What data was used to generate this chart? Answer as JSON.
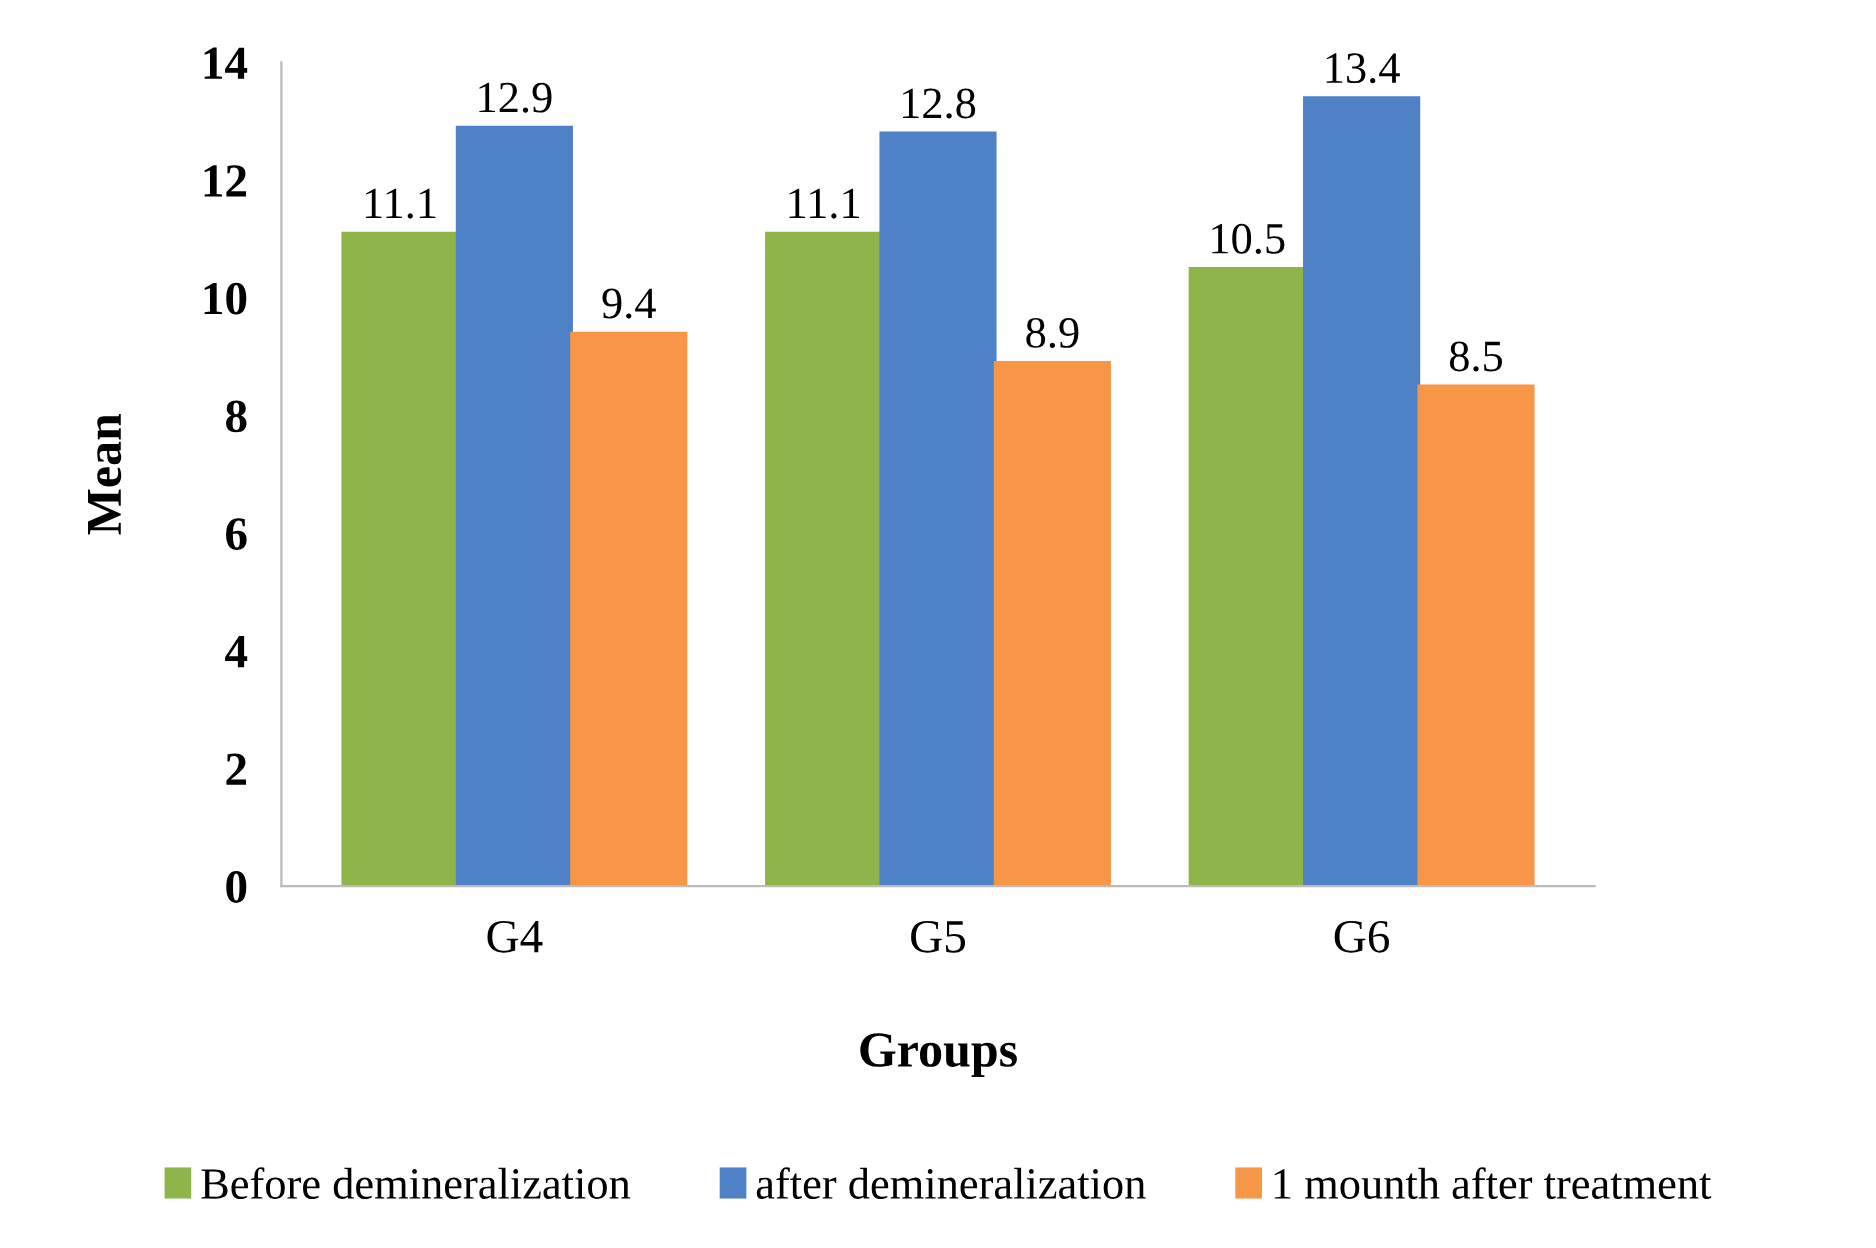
{
  "chart_data": {
    "type": "bar",
    "xlabel": "Groups",
    "ylabel": "Mean",
    "categories": [
      "G4",
      "G5",
      "G6"
    ],
    "series": [
      {
        "name": "Before demineralization",
        "color": "#8db54a",
        "values": [
          11.1,
          11.1,
          10.5
        ]
      },
      {
        "name": "after demineralization",
        "color": "#4f81c7",
        "values": [
          12.9,
          12.8,
          13.4
        ]
      },
      {
        "name": "1 mounth after treatment",
        "color": "#f79646",
        "values": [
          9.4,
          8.9,
          8.5
        ]
      }
    ],
    "ylim": [
      0,
      14
    ],
    "yticks": [
      0,
      2,
      4,
      6,
      8,
      10,
      12,
      14
    ],
    "grid": false,
    "legend": "bottom",
    "data_labels": true
  }
}
